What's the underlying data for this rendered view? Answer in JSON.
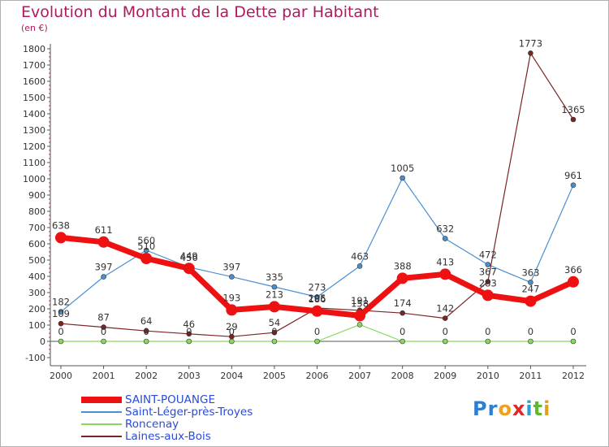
{
  "chart_data": {
    "type": "line",
    "title": "Evolution du Montant de la Dette par Habitant",
    "ylabel": "(en €)",
    "xlabel": "",
    "ylim": [
      -100,
      1800
    ],
    "y_ticks": [
      -100,
      0,
      100,
      200,
      300,
      400,
      500,
      600,
      700,
      800,
      900,
      1000,
      1100,
      1200,
      1300,
      1400,
      1500,
      1600,
      1700,
      1800
    ],
    "categories": [
      "2000",
      "2001",
      "2002",
      "2003",
      "2004",
      "2005",
      "2006",
      "2007",
      "2008",
      "2009",
      "2010",
      "2011",
      "2012"
    ],
    "grid": false,
    "legend_position": "bottom-left",
    "series": [
      {
        "name": "SAINT-POUANGE",
        "color": "#ee1111",
        "values": [
          638,
          611,
          510,
          449,
          193,
          213,
          186,
          158,
          388,
          413,
          283,
          247,
          366
        ],
        "labels": [
          "638",
          "611",
          "510",
          "449",
          "193",
          "213",
          "186",
          "158",
          "388",
          "413",
          "283",
          "247",
          "366"
        ]
      },
      {
        "name": "Saint-Léger-près-Troyes",
        "color": "#4a8fd0",
        "values": [
          182,
          397,
          560,
          456,
          397,
          335,
          273,
          463,
          1005,
          632,
          472,
          363,
          961
        ],
        "labels": [
          "182",
          "397",
          "560",
          "456",
          "397",
          "335",
          "273",
          "463",
          "1005",
          "632",
          "472",
          "363",
          "961"
        ]
      },
      {
        "name": "Roncenay",
        "color": "#88d860",
        "values": [
          0,
          0,
          0,
          0,
          0,
          0,
          0,
          103,
          0,
          0,
          0,
          0,
          0
        ],
        "labels": [
          "0",
          "0",
          "0",
          "0",
          "0",
          "0",
          "0",
          "",
          "0",
          "0",
          "0",
          "0",
          "0"
        ]
      },
      {
        "name": "Laines-aux-Bois",
        "color": "#7a2424",
        "values": [
          109,
          87,
          64,
          46,
          29,
          54,
          205,
          191,
          174,
          142,
          367,
          1773,
          1365
        ],
        "labels": [
          "109",
          "87",
          "64",
          "46",
          "29",
          "54",
          "205",
          "191",
          "174",
          "142",
          "367",
          "1773",
          "1365"
        ]
      }
    ]
  },
  "logo": {
    "letters": [
      "P",
      "r",
      "o",
      "x",
      "i",
      "t",
      "i"
    ],
    "colors": [
      "#2f7fd0",
      "#2f7fd0",
      "#f0a020",
      "#e02828",
      "#2f9fd0",
      "#60b830",
      "#e0a020"
    ]
  }
}
